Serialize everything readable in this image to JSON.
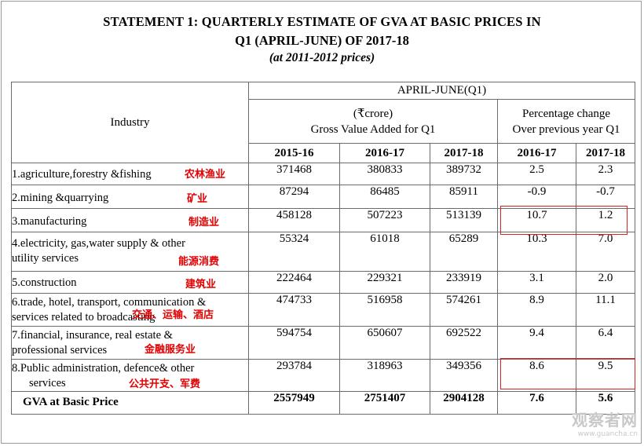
{
  "title": {
    "line1": "STATEMENT 1: QUARTERLY ESTIMATE OF GVA AT BASIC PRICES IN",
    "line2": "Q1 (APRIL-JUNE) OF  2017-18",
    "line3": "(at 2011-2012 prices)"
  },
  "headers": {
    "industry": "Industry",
    "period": "APRIL-JUNE(Q1)",
    "gva_unit": "(₹crore)",
    "gva_label": "Gross Value Added for Q1",
    "pct_line1": "Percentage change",
    "pct_line2": "Over previous year Q1",
    "years": [
      "2015-16",
      "2016-17",
      "2017-18",
      "2016-17",
      "2017-18"
    ]
  },
  "rows": [
    {
      "industry_lines": [
        "1.agriculture,forestry &fishing"
      ],
      "gva": [
        "371468",
        "380833",
        "389732"
      ],
      "pct": [
        "2.5",
        "2.3"
      ],
      "note": "农林渔业"
    },
    {
      "industry_lines": [
        "2.mining &quarrying"
      ],
      "gva": [
        "87294",
        "86485",
        "85911"
      ],
      "pct": [
        "-0.9",
        "-0.7"
      ],
      "note": "矿业"
    },
    {
      "industry_lines": [
        "3.manufacturing"
      ],
      "gva": [
        "458128",
        "507223",
        "513139"
      ],
      "pct": [
        "10.7",
        "1.2"
      ],
      "note": "制造业"
    },
    {
      "industry_lines": [
        "4.electricity, gas,water supply & other",
        "utility services"
      ],
      "gva": [
        "55324",
        "61018",
        "65289"
      ],
      "pct": [
        "10.3",
        "7.0"
      ],
      "note": "能源消费"
    },
    {
      "industry_lines": [
        "5.construction"
      ],
      "gva": [
        "222464",
        "229321",
        "233919"
      ],
      "pct": [
        "3.1",
        "2.0"
      ],
      "note": "建筑业"
    },
    {
      "industry_lines": [
        "6.trade, hotel, transport, communication &",
        "services related to broadcasting"
      ],
      "gva": [
        "474733",
        "516958",
        "574261"
      ],
      "pct": [
        "8.9",
        "11.1"
      ],
      "note": "交通、运输、酒店"
    },
    {
      "industry_lines": [
        "7.financial, insurance, real estate &",
        "professional services"
      ],
      "gva": [
        "594754",
        "650607",
        "692522"
      ],
      "pct": [
        "9.4",
        "6.4"
      ],
      "note": "金融服务业"
    },
    {
      "industry_lines": [
        "8.Public administration, defence& other",
        "services"
      ],
      "gva": [
        "293784",
        "318963",
        "349356"
      ],
      "pct": [
        "8.6",
        "9.5"
      ],
      "note": "公共开支、军费"
    }
  ],
  "total": {
    "industry": "GVA at Basic Price",
    "gva": [
      "2557949",
      "2751407",
      "2904128"
    ],
    "pct": [
      "7.6",
      "5.6"
    ]
  },
  "watermark": {
    "text": "观察者网",
    "url": "www.guancha.cn"
  },
  "colors": {
    "annotation": "#e30000",
    "highlight_box": "#e02020",
    "border": "#6b6b6b"
  }
}
